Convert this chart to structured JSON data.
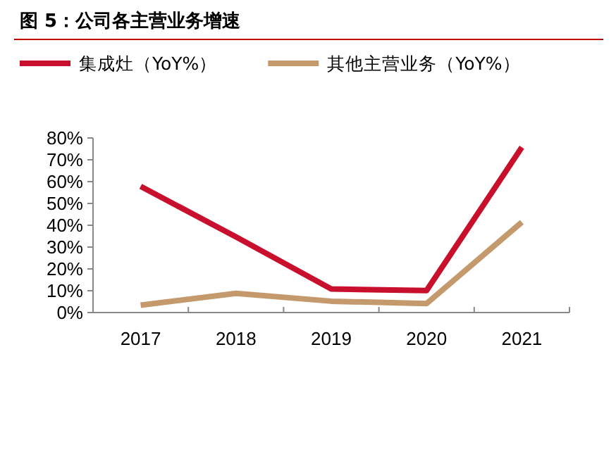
{
  "chart_data": {
    "type": "line",
    "title": "图 5：公司各主营业务增速",
    "categories": [
      "2017",
      "2018",
      "2019",
      "2020",
      "2021"
    ],
    "series": [
      {
        "name": "集成灶（YoY%）",
        "color": "#c8102e",
        "values": [
          57.8,
          34.7,
          10.8,
          10.1,
          75.7
        ]
      },
      {
        "name": "其他主营业务（YoY%）",
        "color": "#c49a6c",
        "values": [
          3.4,
          8.8,
          5.2,
          4.1,
          41.4
        ]
      }
    ],
    "ylim": [
      0,
      80
    ],
    "yticks": [
      {
        "value": 0,
        "label": "0%"
      },
      {
        "value": 10,
        "label": "10%"
      },
      {
        "value": 20,
        "label": "20%"
      },
      {
        "value": 30,
        "label": "30%"
      },
      {
        "value": 40,
        "label": "40%"
      },
      {
        "value": 50,
        "label": "50%"
      },
      {
        "value": 60,
        "label": "60%"
      },
      {
        "value": 70,
        "label": "70%"
      },
      {
        "value": 80,
        "label": "80%"
      }
    ],
    "legend": "top",
    "grid": false,
    "marker": "none",
    "line_style": "solid"
  }
}
